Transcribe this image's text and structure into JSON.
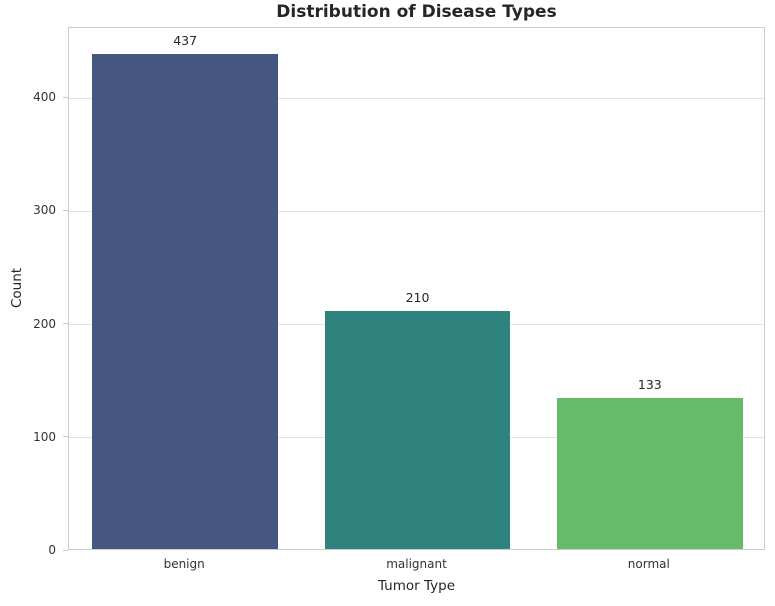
{
  "chart_data": {
    "type": "bar",
    "title": "Distribution of Disease Types",
    "xlabel": "Tumor Type",
    "ylabel": "Count",
    "categories": [
      "benign",
      "malignant",
      "normal"
    ],
    "values": [
      437,
      210,
      133
    ],
    "value_labels": [
      "437",
      "210",
      "133"
    ],
    "bar_colors": [
      "#455680",
      "#2e837e",
      "#66bb6b"
    ],
    "yticks": [
      0,
      100,
      200,
      300,
      400
    ],
    "ytick_labels": [
      "0",
      "100",
      "200",
      "300",
      "400"
    ],
    "ylim": [
      0,
      462
    ],
    "grid": "horizontal",
    "legend": "none",
    "bar_width_fraction": 0.8
  },
  "colors": {
    "background": "#ffffff",
    "grid": "#e2e2e2",
    "spine": "#cccccc",
    "tick_text": "#333333",
    "label_text": "#262626",
    "title_text": "#262626"
  }
}
